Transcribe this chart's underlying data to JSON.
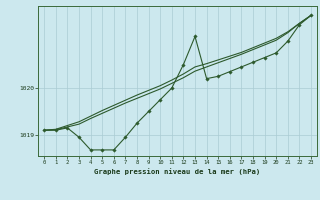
{
  "title": "Graphe pression niveau de la mer (hPa)",
  "bg_color": "#cce8ee",
  "line_color": "#2d5a2d",
  "grid_color": "#aaccd4",
  "tick_color": "#1a3a1a",
  "xlim": [
    -0.5,
    23.5
  ],
  "ylim": [
    1018.55,
    1021.75
  ],
  "yticks": [
    1019,
    1020
  ],
  "xticks": [
    0,
    1,
    2,
    3,
    4,
    5,
    6,
    7,
    8,
    9,
    10,
    11,
    12,
    13,
    14,
    15,
    16,
    17,
    18,
    19,
    20,
    21,
    22,
    23
  ],
  "series1_x": [
    0,
    1,
    2,
    3,
    4,
    5,
    6,
    7,
    8,
    9,
    10,
    11,
    12,
    13,
    14,
    15,
    16,
    17,
    18,
    19,
    20,
    21,
    22,
    23
  ],
  "series1_y": [
    1019.1,
    1019.1,
    1019.15,
    1018.95,
    1018.68,
    1018.68,
    1018.68,
    1018.95,
    1019.25,
    1019.5,
    1019.75,
    1020.0,
    1020.5,
    1021.1,
    1020.2,
    1020.25,
    1020.35,
    1020.45,
    1020.55,
    1020.65,
    1020.75,
    1021.0,
    1021.35,
    1021.55
  ],
  "series2_x": [
    0,
    1,
    2,
    3,
    4,
    5,
    6,
    7,
    8,
    9,
    10,
    11,
    12,
    13,
    14,
    15,
    16,
    17,
    18,
    19,
    20,
    21,
    22,
    23
  ],
  "series2_y": [
    1019.1,
    1019.12,
    1019.2,
    1019.28,
    1019.4,
    1019.52,
    1019.63,
    1019.74,
    1019.85,
    1019.95,
    1020.05,
    1020.17,
    1020.3,
    1020.45,
    1020.52,
    1020.6,
    1020.68,
    1020.76,
    1020.86,
    1020.96,
    1021.06,
    1021.2,
    1021.38,
    1021.55
  ],
  "series3_x": [
    0,
    1,
    2,
    3,
    4,
    5,
    6,
    7,
    8,
    9,
    10,
    11,
    12,
    13,
    14,
    15,
    16,
    17,
    18,
    19,
    20,
    21,
    22,
    23
  ],
  "series3_y": [
    1019.1,
    1019.11,
    1019.17,
    1019.23,
    1019.35,
    1019.46,
    1019.57,
    1019.68,
    1019.78,
    1019.88,
    1019.98,
    1020.1,
    1020.22,
    1020.36,
    1020.45,
    1020.54,
    1020.63,
    1020.72,
    1020.82,
    1020.92,
    1021.02,
    1021.18,
    1021.38,
    1021.55
  ]
}
